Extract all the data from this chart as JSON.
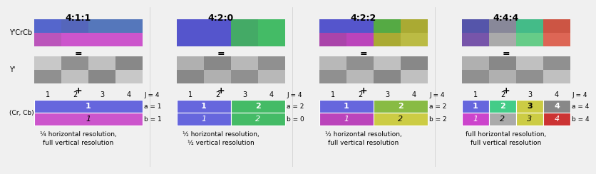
{
  "background": "#f0f0f0",
  "sections": [
    {
      "title": "4:1:1",
      "color_grid": [
        [
          "#5566cc",
          "#5566bb",
          "#5577bb",
          "#5577bb"
        ],
        [
          "#bb55bb",
          "#cc55cc",
          "#cc55cc",
          "#cc55cc"
        ]
      ],
      "luma_grid": [
        [
          "#c8c8c8",
          "#909090",
          "#c0c0c0",
          "#888888"
        ],
        [
          "#909090",
          "#c0c0c0",
          "#888888",
          "#c8c8c8"
        ]
      ],
      "cr_row1_cells": [
        {
          "label": "1",
          "color": "#6666dd",
          "text_color": "white",
          "bold": true,
          "ncols": 4
        }
      ],
      "cb_row2_cells": [
        {
          "label": "1",
          "color": "#cc55cc",
          "text_color": "black",
          "bold": false,
          "italic": true,
          "ncols": 4
        }
      ],
      "a_val": "1",
      "b_val": "1",
      "caption1": "¼ horizontal resolution,",
      "caption2": "full vertical resolution"
    },
    {
      "title": "4:2:0",
      "color_grid": [
        [
          "#5555cc",
          "#5555cc",
          "#44aa66",
          "#44bb66"
        ],
        [
          "#5555cc",
          "#5555cc",
          "#44aa66",
          "#44bb66"
        ]
      ],
      "luma_grid": [
        [
          "#b0b0b0",
          "#888888",
          "#b8b8b8",
          "#909090"
        ],
        [
          "#888888",
          "#b0b0b0",
          "#909090",
          "#b8b8b8"
        ]
      ],
      "cr_row1_cells": [
        {
          "label": "1",
          "color": "#6666dd",
          "text_color": "white",
          "bold": true,
          "ncols": 2
        },
        {
          "label": "2",
          "color": "#44bb66",
          "text_color": "white",
          "bold": true,
          "ncols": 2
        }
      ],
      "cb_row2_cells": [
        {
          "label": "1",
          "color": "#6666dd",
          "text_color": "white",
          "bold": false,
          "italic": true,
          "ncols": 2
        },
        {
          "label": "2",
          "color": "#44bb66",
          "text_color": "white",
          "bold": false,
          "italic": true,
          "ncols": 2
        }
      ],
      "a_val": "2",
      "b_val": "0",
      "caption1": "½ horizontal resolution,",
      "caption2": "½ vertical resolution"
    },
    {
      "title": "4:2:2",
      "color_grid": [
        [
          "#5555cc",
          "#5555cc",
          "#55aa44",
          "#aaaa33"
        ],
        [
          "#aa44aa",
          "#bb44bb",
          "#aaaa33",
          "#bbbb44"
        ]
      ],
      "luma_grid": [
        [
          "#b8b8b8",
          "#909090",
          "#c0c0c0",
          "#888888"
        ],
        [
          "#909090",
          "#b8b8b8",
          "#888888",
          "#c0c0c0"
        ]
      ],
      "cr_row1_cells": [
        {
          "label": "1",
          "color": "#6666dd",
          "text_color": "white",
          "bold": true,
          "ncols": 2
        },
        {
          "label": "2",
          "color": "#88bb44",
          "text_color": "white",
          "bold": true,
          "ncols": 2
        }
      ],
      "cb_row2_cells": [
        {
          "label": "1",
          "color": "#bb44bb",
          "text_color": "white",
          "bold": false,
          "italic": true,
          "ncols": 2
        },
        {
          "label": "2",
          "color": "#cccc44",
          "text_color": "black",
          "bold": false,
          "italic": true,
          "ncols": 2
        }
      ],
      "a_val": "2",
      "b_val": "2",
      "caption1": "½ horizontal resolution,",
      "caption2": "full vertical resolution"
    },
    {
      "title": "4:4:4",
      "color_grid": [
        [
          "#5555aa",
          "#888899",
          "#44bb88",
          "#cc5544"
        ],
        [
          "#7755aa",
          "#aaaaaa",
          "#66cc88",
          "#dd6655"
        ]
      ],
      "luma_grid": [
        [
          "#b0b0b0",
          "#888888",
          "#c0c0c0",
          "#909090"
        ],
        [
          "#909090",
          "#b0b0b0",
          "#909090",
          "#c0c0c0"
        ]
      ],
      "cr_row1_cells": [
        {
          "label": "1",
          "color": "#6666dd",
          "text_color": "white",
          "bold": true,
          "ncols": 1
        },
        {
          "label": "2",
          "color": "#44cc88",
          "text_color": "white",
          "bold": true,
          "ncols": 1
        },
        {
          "label": "3",
          "color": "#cccc44",
          "text_color": "black",
          "bold": true,
          "ncols": 1
        },
        {
          "label": "4",
          "color": "#888888",
          "text_color": "white",
          "bold": true,
          "ncols": 1
        }
      ],
      "cb_row2_cells": [
        {
          "label": "1",
          "color": "#cc44cc",
          "text_color": "white",
          "bold": false,
          "italic": true,
          "ncols": 1
        },
        {
          "label": "2",
          "color": "#aaaaaa",
          "text_color": "black",
          "bold": false,
          "italic": true,
          "ncols": 1
        },
        {
          "label": "3",
          "color": "#cccc44",
          "text_color": "black",
          "bold": false,
          "italic": true,
          "ncols": 1
        },
        {
          "label": "4",
          "color": "#cc3333",
          "text_color": "white",
          "bold": false,
          "italic": true,
          "ncols": 1
        }
      ],
      "a_val": "4",
      "b_val": "4",
      "caption1": "full horizontal resolution,",
      "caption2": "full vertical resolution"
    }
  ]
}
